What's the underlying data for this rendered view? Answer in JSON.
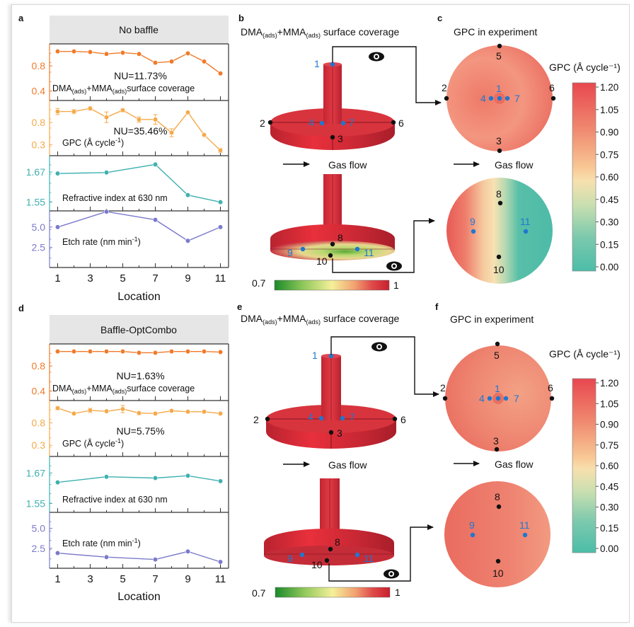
{
  "colors": {
    "coverage": "#f07a2a",
    "gpc": "#f5a94a",
    "refractive": "#3fb0b0",
    "etch": "#7a7acc",
    "point_blue": "#1f77d0",
    "point_black": "#111111",
    "header_bg": "#e6e6e6"
  },
  "panels": {
    "a": {
      "label": "a",
      "header": "No baffle"
    },
    "b": {
      "label": "b",
      "title_main": "DMA",
      "title_sub": "(ads)",
      "title_plus": "+MMA",
      "title_sub2": "(ads)",
      "title_rest": " surface coverage",
      "gas_flow": "Gas flow",
      "scale_min": "0.7",
      "scale_max": "1"
    },
    "c": {
      "label": "c",
      "title": "GPC in experiment",
      "gas_flow": "Gas flow",
      "colorbar_title": "GPC (Å cycle⁻¹)"
    },
    "d": {
      "label": "d",
      "header": "Baffle-OptCombo"
    },
    "e": {
      "label": "e",
      "title_main": "DMA",
      "title_sub": "(ads)",
      "title_plus": "+MMA",
      "title_sub2": "(ads)",
      "title_rest": " surface coverage",
      "gas_flow": "Gas flow",
      "scale_min": "0.7",
      "scale_max": "1"
    },
    "f": {
      "label": "f",
      "title": "GPC in experiment",
      "gas_flow": "Gas flow",
      "colorbar_title": "GPC (Å cycle⁻¹)"
    }
  },
  "colorbar_ticks": [
    "1.20",
    "1.05",
    "0.90",
    "0.75",
    "0.60",
    "0.45",
    "0.30",
    "0.15",
    "0.00"
  ],
  "point_labels": [
    "1",
    "2",
    "3",
    "4",
    "5",
    "6",
    "7",
    "8",
    "9",
    "10",
    "11"
  ],
  "chart_data": [
    {
      "panel": "a",
      "type": "line",
      "title": "No baffle",
      "xlabel": "Location",
      "x_ticks": [
        "1",
        "3",
        "5",
        "7",
        "9",
        "11"
      ],
      "xlim": [
        0.5,
        11.5
      ],
      "subplots": [
        {
          "name": "DMA(ads)+MMA(ads) surface coverage",
          "label_main": "DMA",
          "label_sub": "(ads)",
          "label_plus": "+MMA",
          "label_sub2": "(ads)",
          "label_rest": "surface coverage",
          "annotation": "NU=11.73%",
          "color": "#f07a2a",
          "y_ticks": [
            "0.8",
            "0.4"
          ],
          "ylim": [
            0.25,
            1.15
          ],
          "x": [
            1,
            2,
            3,
            4,
            5,
            6,
            7,
            8,
            9,
            10,
            11
          ],
          "y": [
            1.03,
            1.03,
            1.02,
            0.99,
            1.01,
            0.99,
            0.85,
            0.87,
            1.0,
            0.87,
            0.68
          ]
        },
        {
          "name": "GPC (Å cycle-1)",
          "label_main": "GPC (Å cycle",
          "label_sup": "-1",
          "label_end": ")",
          "annotation": "NU=35.46%",
          "color": "#f5a94a",
          "y_ticks": [
            "0.8",
            "0.3"
          ],
          "ylim": [
            0.05,
            1.3
          ],
          "x": [
            1,
            2,
            3,
            4,
            5,
            6,
            7,
            8,
            9,
            10,
            11
          ],
          "y": [
            1.05,
            1.05,
            1.12,
            0.92,
            1.08,
            0.87,
            0.87,
            0.57,
            1.03,
            0.52,
            0.17
          ],
          "err": [
            0.07,
            0.05,
            0.04,
            0.12,
            0.04,
            0.06,
            0.11,
            0.09,
            0.03,
            0.02,
            0.05
          ]
        },
        {
          "name": "Refractive index at 630 nm",
          "label_main": "Refractive index at 630 nm",
          "color": "#3fb0b0",
          "y_ticks": [
            "1.67",
            "1.55"
          ],
          "ylim": [
            1.515,
            1.735
          ],
          "x": [
            1,
            4,
            7,
            9,
            11
          ],
          "y": [
            1.664,
            1.668,
            1.7,
            1.578,
            1.55
          ]
        },
        {
          "name": "Etch rate (nm min-1)",
          "label_main": "Etch rate (nm min",
          "label_sup": "-1",
          "label_end": ")",
          "color": "#7a7acc",
          "y_ticks": [
            "5.0",
            "2.5"
          ],
          "ylim": [
            0.0,
            7.0
          ],
          "x": [
            1,
            4,
            7,
            9,
            11
          ],
          "y": [
            5.0,
            6.9,
            5.9,
            3.3,
            5.0
          ]
        }
      ]
    },
    {
      "panel": "d",
      "type": "line",
      "title": "Baffle-OptCombo",
      "xlabel": "Location",
      "x_ticks": [
        "1",
        "3",
        "5",
        "7",
        "9",
        "11"
      ],
      "xlim": [
        0.5,
        11.5
      ],
      "subplots": [
        {
          "name": "DMA(ads)+MMA(ads) surface coverage",
          "label_main": "DMA",
          "label_sub": "(ads)",
          "label_plus": "+MMA",
          "label_sub2": "(ads)",
          "label_rest": "surface coverage",
          "annotation": "NU=1.63%",
          "color": "#f07a2a",
          "y_ticks": [
            "0.8",
            "0.4"
          ],
          "ylim": [
            0.25,
            1.15
          ],
          "x": [
            1,
            2,
            3,
            4,
            5,
            6,
            7,
            8,
            9,
            10,
            11
          ],
          "y": [
            1.03,
            1.03,
            1.03,
            1.03,
            1.03,
            1.01,
            1.01,
            1.03,
            1.03,
            1.03,
            1.02
          ]
        },
        {
          "name": "GPC (Å cycle-1)",
          "label_main": "GPC (Å cycle",
          "label_sup": "-1",
          "label_end": ")",
          "annotation": "NU=5.75%",
          "color": "#f5a94a",
          "y_ticks": [
            "0.8",
            "0.3"
          ],
          "ylim": [
            0.05,
            1.3
          ],
          "x": [
            1,
            2,
            3,
            4,
            5,
            6,
            7,
            8,
            9,
            10,
            11
          ],
          "y": [
            1.13,
            1.01,
            1.08,
            1.06,
            1.11,
            1.02,
            1.01,
            1.07,
            1.05,
            1.05,
            1.01
          ],
          "err": [
            0.04,
            0.02,
            0.05,
            0.02,
            0.08,
            0.04,
            0.03,
            0.02,
            0.02,
            0.02,
            0.03
          ]
        },
        {
          "name": "Refractive index at 630 nm",
          "label_main": "Refractive index at 630 nm",
          "color": "#3fb0b0",
          "y_ticks": [
            "1.67",
            "1.55"
          ],
          "ylim": [
            1.515,
            1.735
          ],
          "x": [
            1,
            4,
            7,
            9,
            11
          ],
          "y": [
            1.633,
            1.655,
            1.65,
            1.659,
            1.638
          ]
        },
        {
          "name": "Etch rate (nm min-1)",
          "label_main": "Etch rate (nm min",
          "label_sup": "-1",
          "label_end": ")",
          "color": "#7a7acc",
          "y_ticks": [
            "5.0",
            "2.5"
          ],
          "ylim": [
            0.0,
            7.0
          ],
          "x": [
            1,
            4,
            7,
            9,
            11
          ],
          "y": [
            1.9,
            1.4,
            1.1,
            2.1,
            0.8
          ]
        }
      ]
    },
    {
      "panel": "c",
      "type": "heatmap",
      "title": "GPC in experiment",
      "colorbar": {
        "title": "GPC (Å cycle-1)",
        "range": [
          0.0,
          1.2
        ],
        "ticks": [
          1.2,
          1.05,
          0.9,
          0.75,
          0.6,
          0.45,
          0.3,
          0.15,
          0.0
        ]
      },
      "top_wafer_points": [
        "1",
        "2",
        "3",
        "4",
        "5",
        "6",
        "7"
      ],
      "bottom_wafer_points": [
        "8",
        "9",
        "10",
        "11"
      ]
    },
    {
      "panel": "f",
      "type": "heatmap",
      "title": "GPC in experiment",
      "colorbar": {
        "title": "GPC (Å cycle-1)",
        "range": [
          0.0,
          1.2
        ],
        "ticks": [
          1.2,
          1.05,
          0.9,
          0.75,
          0.6,
          0.45,
          0.3,
          0.15,
          0.0
        ]
      },
      "top_wafer_points": [
        "1",
        "2",
        "3",
        "4",
        "5",
        "6",
        "7"
      ],
      "bottom_wafer_points": [
        "8",
        "9",
        "10",
        "11"
      ]
    }
  ]
}
